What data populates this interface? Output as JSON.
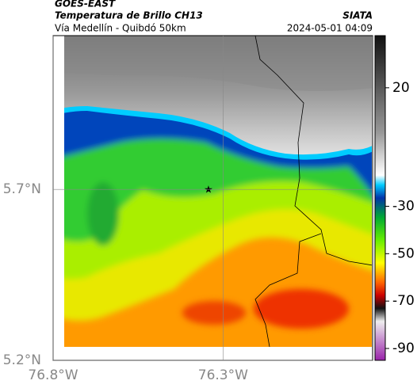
{
  "header": {
    "title": "GOES-EAST",
    "subtitle": "Temperatura de Brillo CH13",
    "place": "Vía Medellín - Quibdó 50km",
    "source": "SIATA",
    "datetime": "2024-05-01 04:09"
  },
  "map": {
    "lon_range": [
      -76.8,
      -75.86
    ],
    "lat_range": [
      5.2,
      6.15
    ],
    "lon_ticks": [
      {
        "value": -76.8,
        "label": "76.8°W"
      },
      {
        "value": -76.3,
        "label": "76.3°W"
      }
    ],
    "lat_ticks": [
      {
        "value": 5.7,
        "label": "5.7°N"
      },
      {
        "value": 5.2,
        "label": "5.2°N"
      }
    ]
  },
  "colorbar": {
    "range": [
      42,
      -95
    ],
    "ticks": [
      20,
      -30,
      -50,
      -70,
      -90
    ]
  }
}
